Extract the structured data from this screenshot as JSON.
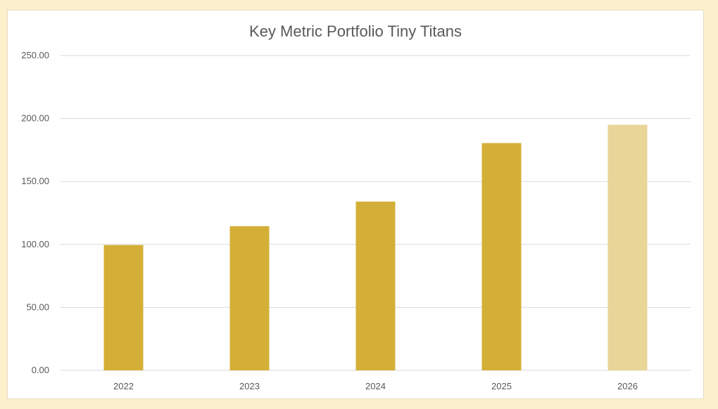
{
  "chart_data": {
    "type": "bar",
    "title": "Key Metric Portfolio Tiny Titans",
    "categories": [
      "2022",
      "2023",
      "2024",
      "2025",
      "2026"
    ],
    "values": [
      99.5,
      114.5,
      134,
      180.5,
      195
    ],
    "ylim": [
      0,
      250
    ],
    "yticks": [
      "0.00",
      "50.00",
      "100.00",
      "150.00",
      "200.00",
      "250.00"
    ],
    "ytick_values": [
      0,
      50,
      100,
      150,
      200,
      250
    ],
    "grid": true,
    "xlabel": "",
    "ylabel": "",
    "colors": {
      "bar": "#d4af37",
      "highlight_bar": "#e8d597",
      "highlight_index": 4
    }
  }
}
